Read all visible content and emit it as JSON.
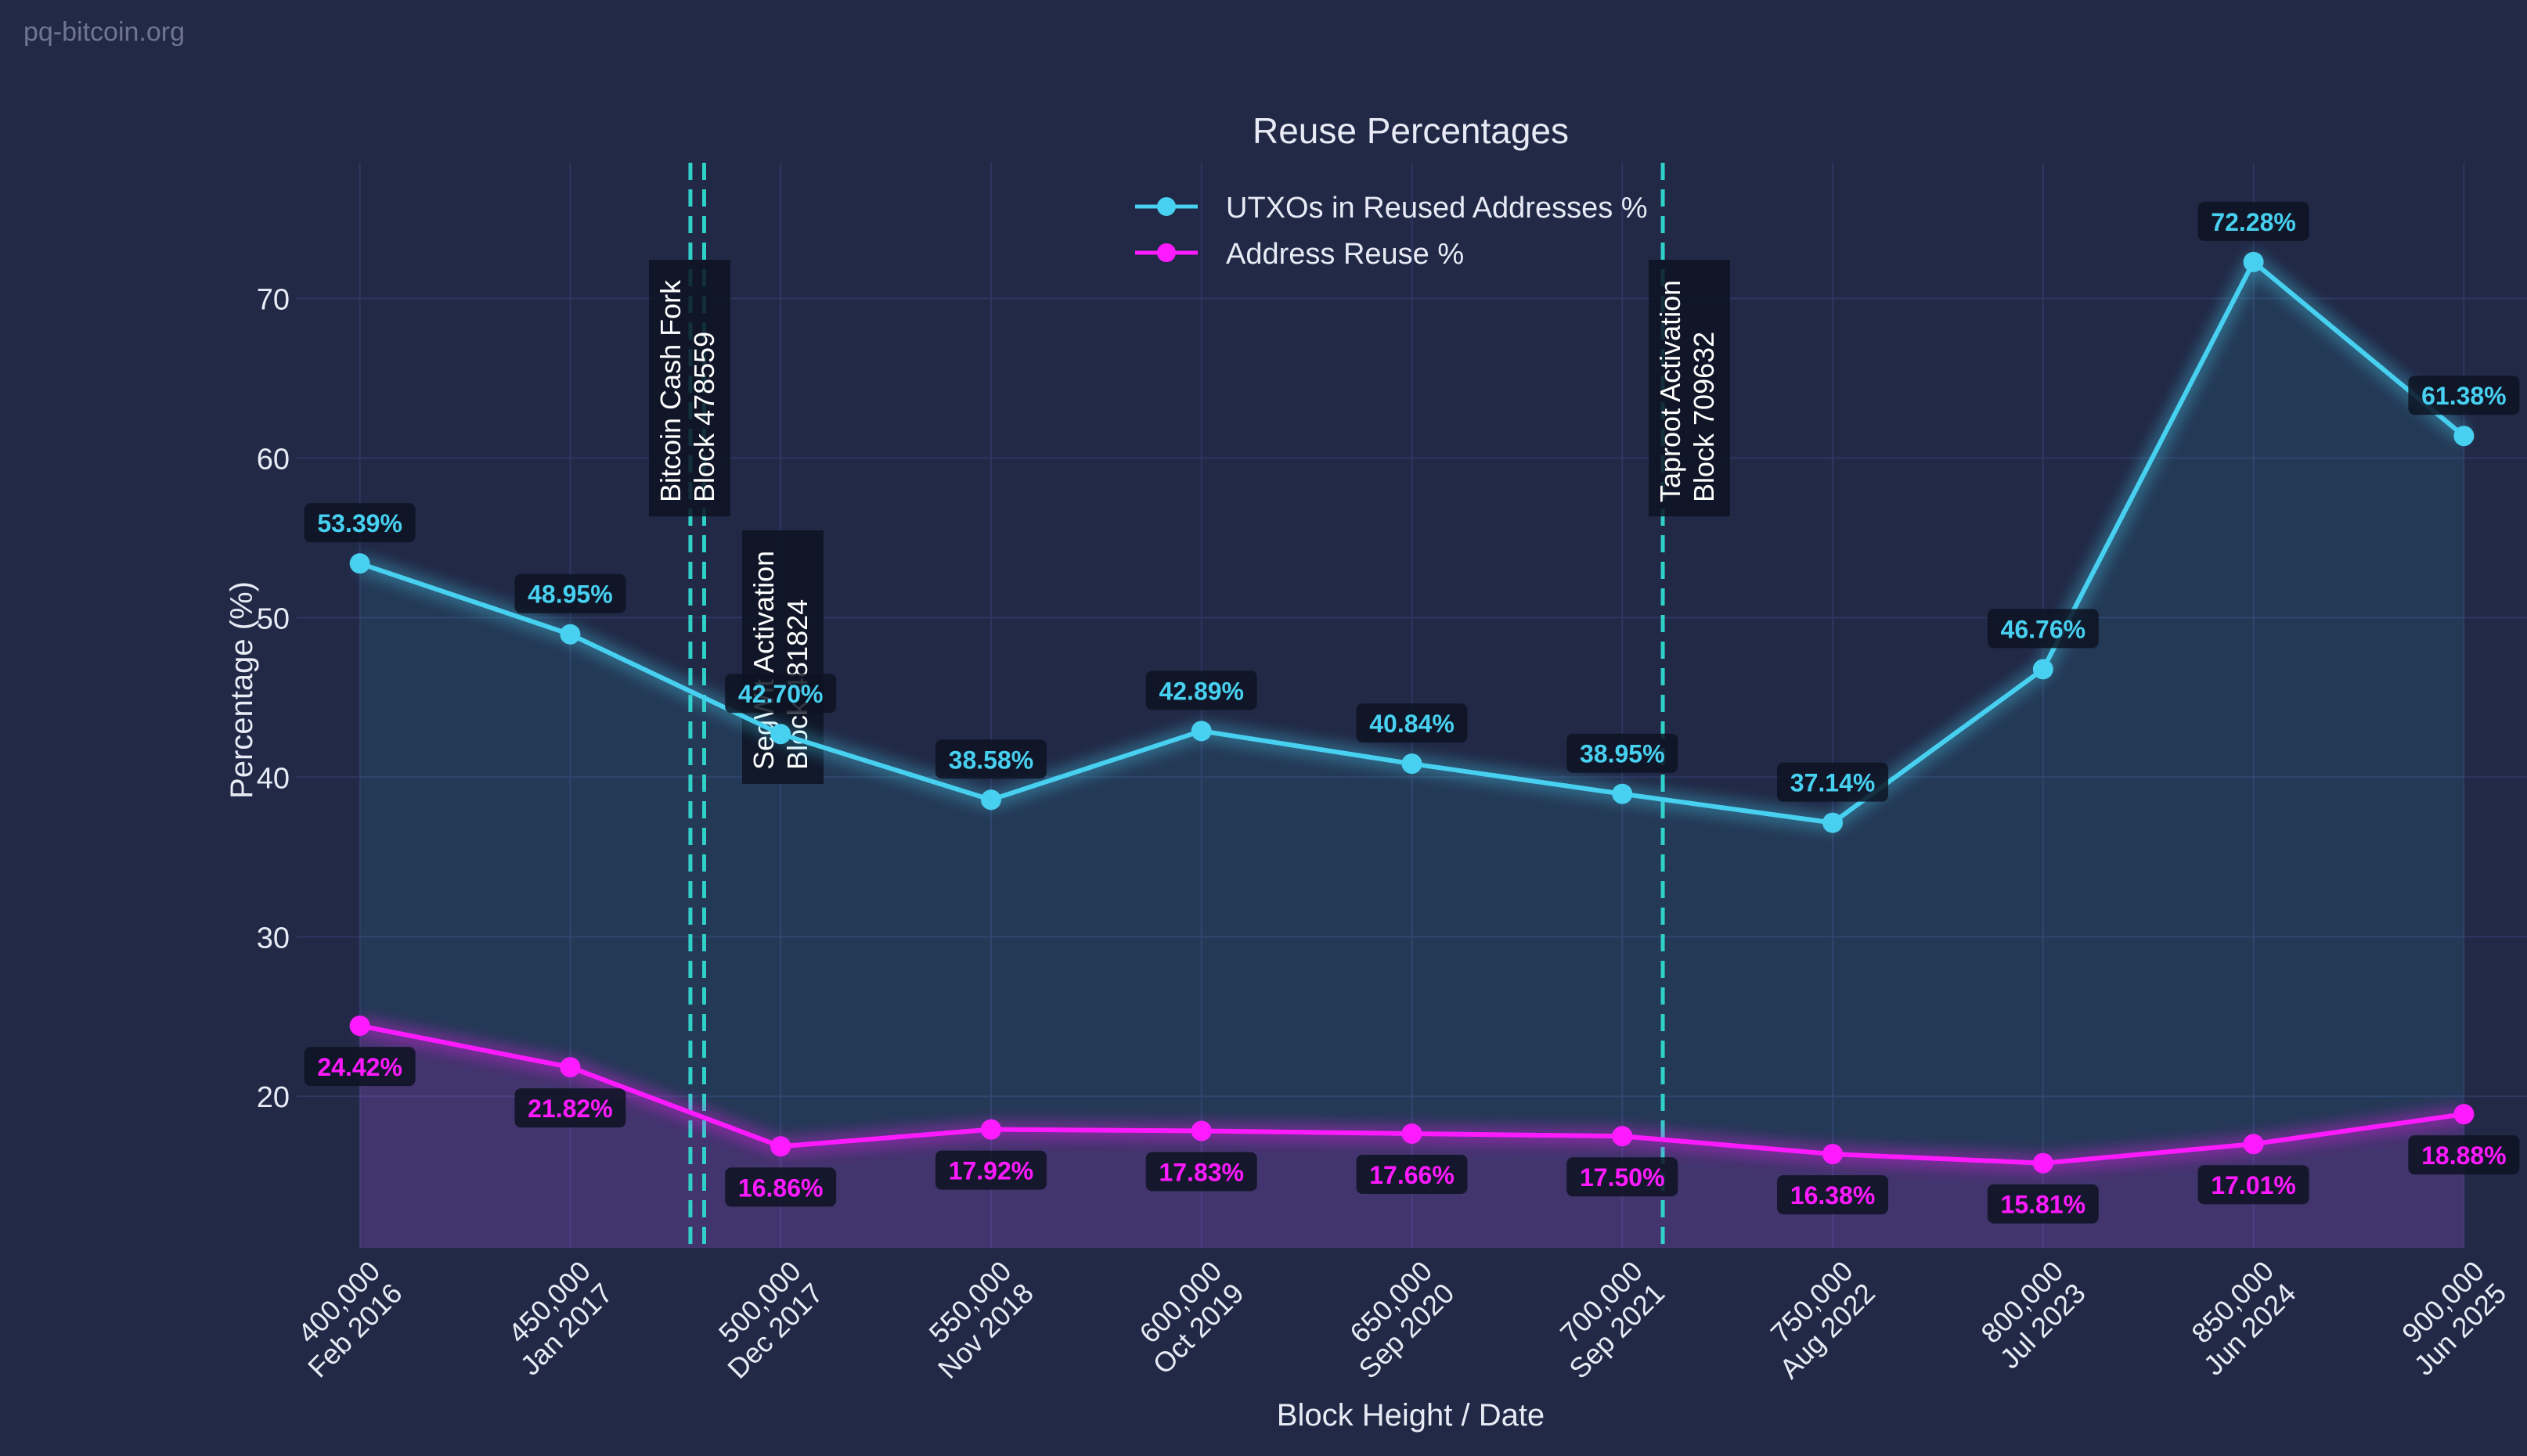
{
  "watermark": "pq-bitcoin.org",
  "colors": {
    "background": "#212946",
    "grid": "#2d3760",
    "text": "#e8ebf5",
    "utxo": "#47d0f0",
    "reuse": "#ff1aff",
    "event_line": "#2fd1c9",
    "label_box": "#0d1322"
  },
  "chart_data": {
    "type": "line",
    "title": "Reuse Percentages",
    "xlabel": "Block Height / Date",
    "ylabel": "Percentage (%)",
    "ylim": [
      10.5,
      78.5
    ],
    "xlim": [
      385000,
      915000
    ],
    "yticks": [
      20,
      30,
      40,
      50,
      60,
      70
    ],
    "grid": true,
    "legend_position": "top-center",
    "x": [
      400000,
      450000,
      500000,
      550000,
      600000,
      650000,
      700000,
      750000,
      800000,
      850000,
      900000
    ],
    "x_tick_labels": [
      [
        "400,000",
        "Feb 2016"
      ],
      [
        "450,000",
        "Jan 2017"
      ],
      [
        "500,000",
        "Dec 2017"
      ],
      [
        "550,000",
        "Nov 2018"
      ],
      [
        "600,000",
        "Oct 2019"
      ],
      [
        "650,000",
        "Sep 2020"
      ],
      [
        "700,000",
        "Sep 2021"
      ],
      [
        "750,000",
        "Aug 2022"
      ],
      [
        "800,000",
        "Jul 2023"
      ],
      [
        "850,000",
        "Jun 2024"
      ],
      [
        "900,000",
        "Jun 2025"
      ]
    ],
    "series": [
      {
        "name": "UTXOs in Reused Addresses %",
        "color": "#47d0f0",
        "values": [
          53.39,
          48.95,
          42.7,
          38.58,
          42.89,
          40.84,
          38.95,
          37.14,
          46.76,
          72.28,
          61.38
        ],
        "labels": [
          "53.39%",
          "48.95%",
          "42.70%",
          "38.58%",
          "42.89%",
          "40.84%",
          "38.95%",
          "37.14%",
          "46.76%",
          "72.28%",
          "61.38%"
        ]
      },
      {
        "name": "Address Reuse %",
        "color": "#ff1aff",
        "values": [
          24.42,
          21.82,
          16.86,
          17.92,
          17.83,
          17.66,
          17.5,
          16.38,
          15.81,
          17.01,
          18.88
        ],
        "labels": [
          "24.42%",
          "21.82%",
          "16.86%",
          "17.92%",
          "17.83%",
          "17.66%",
          "17.50%",
          "16.38%",
          "15.81%",
          "17.01%",
          "18.88%"
        ]
      }
    ],
    "events": [
      {
        "block": 478559,
        "line1": "Bitcoin Cash Fork",
        "line2": "Block 478559"
      },
      {
        "block": 481824,
        "line1": "SegWit Activation",
        "line2": "Block 481824"
      },
      {
        "block": 709632,
        "line1": "Taproot Activation",
        "line2": "Block 709632"
      }
    ]
  }
}
